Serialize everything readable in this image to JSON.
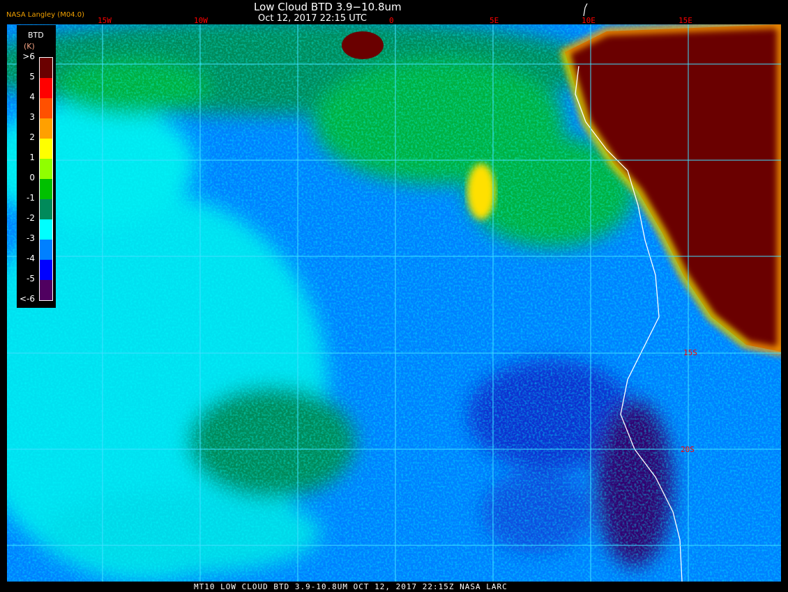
{
  "header": {
    "title": "Low Cloud BTD 3.9−10.8um",
    "subtitle": "Oct 12, 2017 22:15 UTC",
    "organization": "NASA Langley (M04.0)"
  },
  "longitude_labels": [
    "15W",
    "10W",
    "0",
    "5E",
    "10E",
    "15E"
  ],
  "latitude_labels": [
    "15S",
    "20S"
  ],
  "legend": {
    "title": "BTD",
    "unit": "(K)",
    "ticks": [
      ">6",
      "5",
      "4",
      "3",
      "2",
      "1",
      "0",
      "-1",
      "-2",
      "-3",
      "-4",
      "-5",
      "<-6"
    ],
    "colors": [
      "#6a0000",
      "#ff0000",
      "#ff5000",
      "#ffa000",
      "#ffff00",
      "#90ff00",
      "#00c000",
      "#008a5a",
      "#00ffff",
      "#0080ff",
      "#0000ff",
      "#500060"
    ]
  },
  "footer": "MT10  LOW CLOUD BTD 3.9-10.8UM   OCT 12, 2017 22:15Z   NASA LARC"
}
